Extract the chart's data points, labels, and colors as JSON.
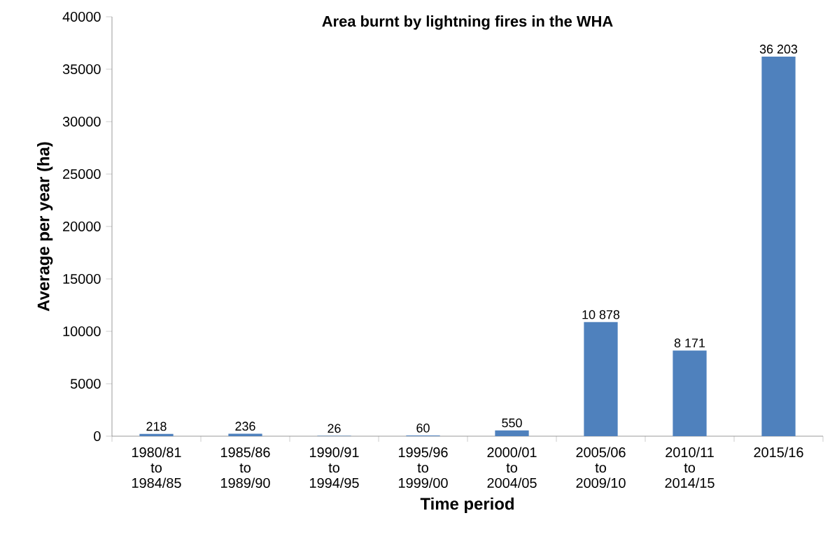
{
  "chart_data": {
    "type": "bar",
    "title": "Area burnt by lightning fires in the WHA",
    "xlabel": "Time period",
    "ylabel": "Average per year (ha)",
    "categories": [
      "1980/81 to 1984/85",
      "1985/86 to 1989/90",
      "1990/91 to 1994/95",
      "1995/96 to 1999/00",
      "2000/01 to 2004/05",
      "2005/06 to 2009/10",
      "2010/11 to 2014/15",
      "2015/16"
    ],
    "values": [
      218,
      236,
      26,
      60,
      550,
      10878,
      8171,
      36203
    ],
    "value_labels": [
      "218",
      "236",
      "26",
      "60",
      "550",
      "10 878",
      "8 171",
      "36 203"
    ],
    "color": "#4f81bd",
    "ylim": [
      0,
      40000
    ],
    "yticks": [
      0,
      5000,
      10000,
      15000,
      20000,
      25000,
      30000,
      35000,
      40000
    ]
  }
}
